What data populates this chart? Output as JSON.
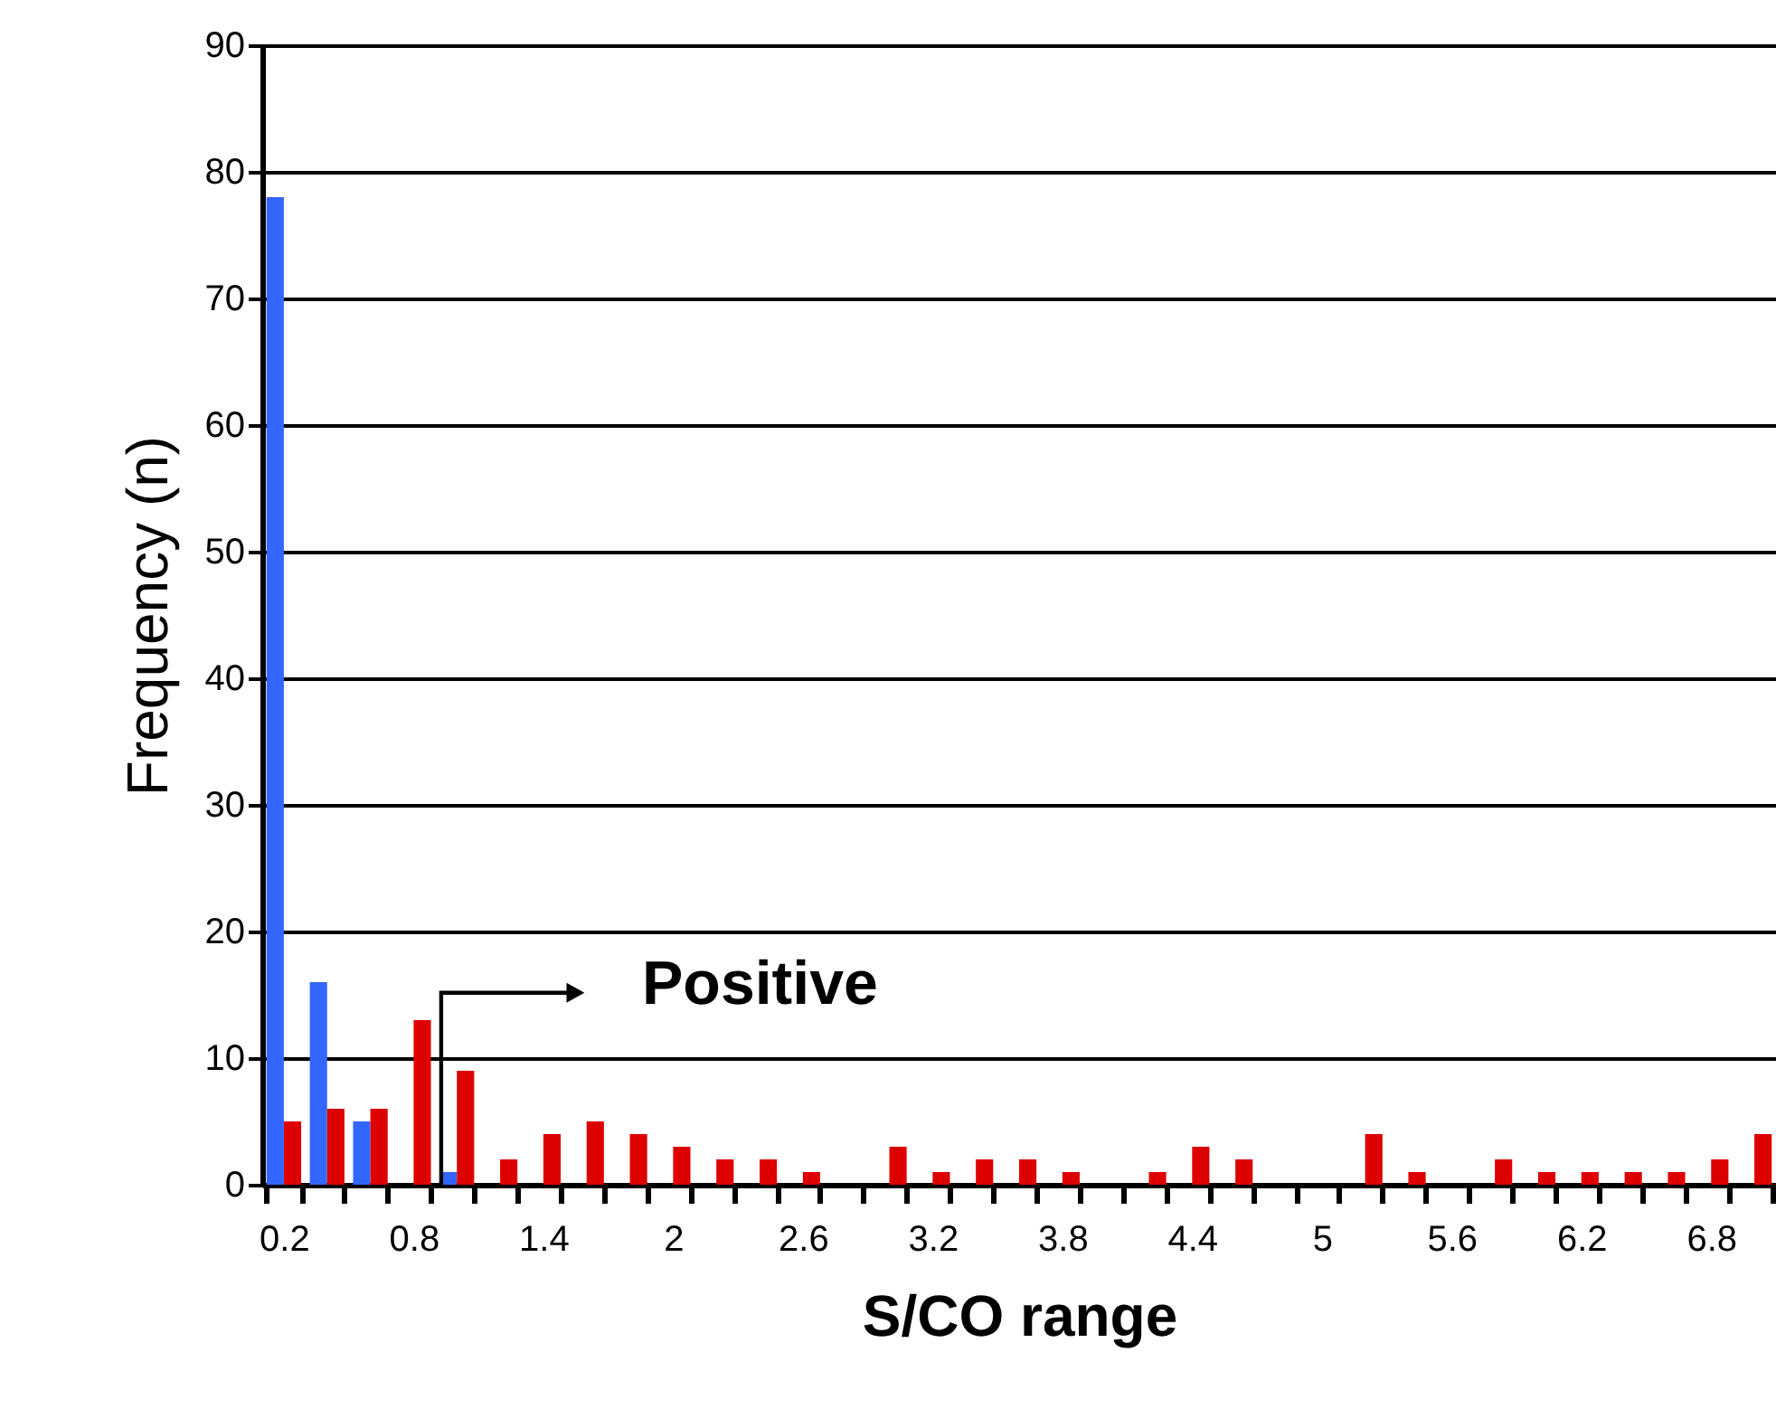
{
  "chart_data": {
    "type": "bar",
    "xlabel": "S/CO range",
    "ylabel": "Frequency (n)",
    "categories": [
      "0.2",
      null,
      null,
      "0.8",
      null,
      null,
      "1.4",
      null,
      null,
      "2",
      null,
      null,
      "2.6",
      null,
      null,
      "3.2",
      null,
      null,
      "3.8",
      null,
      null,
      "4.4",
      null,
      null,
      "5",
      null,
      null,
      "5.6",
      null,
      null,
      "6.2",
      null,
      null,
      "6.8",
      null
    ],
    "series": [
      {
        "color": "#3366ff",
        "values": [
          78,
          16,
          5,
          0,
          1,
          0,
          0,
          0,
          0,
          0,
          0,
          0,
          0,
          0,
          0,
          0,
          0,
          0,
          0,
          0,
          0,
          0,
          0,
          0,
          0,
          0,
          0,
          0,
          0,
          0,
          0,
          0,
          0,
          0,
          0
        ]
      },
      {
        "color": "#dd0000",
        "values": [
          5,
          6,
          6,
          13,
          9,
          2,
          4,
          5,
          4,
          3,
          2,
          2,
          1,
          0,
          3,
          1,
          2,
          2,
          1,
          0,
          1,
          3,
          2,
          0,
          0,
          4,
          1,
          0,
          2,
          1,
          1,
          1,
          1,
          2,
          4
        ]
      }
    ],
    "ylim": [
      0,
      90
    ],
    "yticks": [
      0,
      10,
      20,
      30,
      40,
      50,
      60,
      70,
      80,
      90
    ],
    "grid": "y",
    "legend": false,
    "annotations": [
      "Positive"
    ]
  }
}
